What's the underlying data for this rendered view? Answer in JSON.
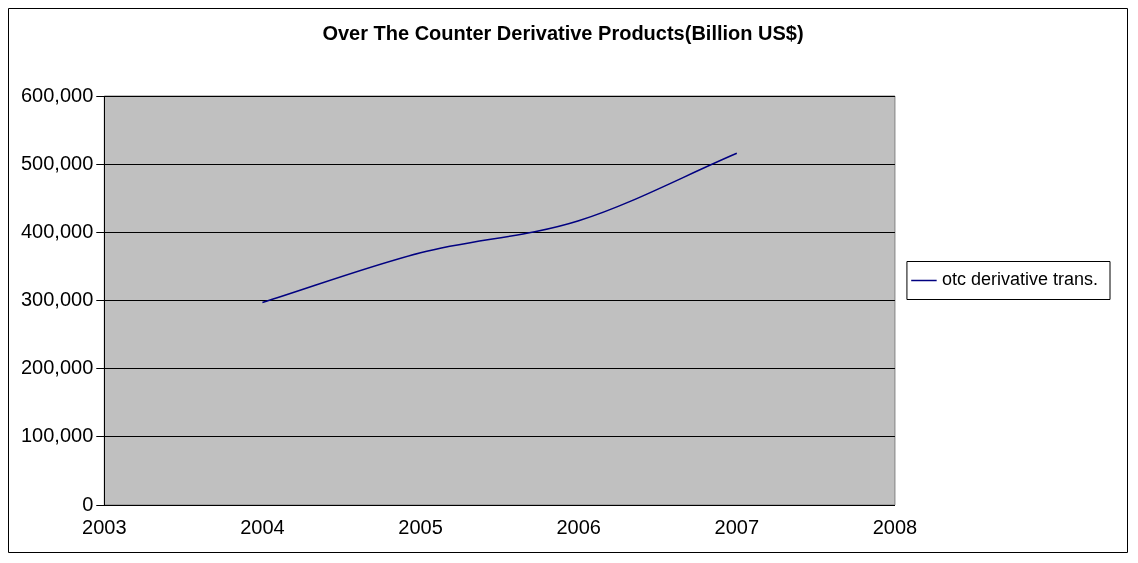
{
  "chart_data": {
    "type": "line",
    "title": "Over The Counter Derivative Products(Billion US$)",
    "x": [
      2004,
      2005,
      2006,
      2007
    ],
    "series": [
      {
        "name": "otc derivative trans.",
        "color": "#000080",
        "values": [
          297000,
          370000,
          417000,
          516000
        ]
      }
    ],
    "xlim": [
      2003,
      2008
    ],
    "xticks": [
      2003,
      2004,
      2005,
      2006,
      2007,
      2008
    ],
    "ylim": [
      0,
      600000
    ],
    "yticks": [
      0,
      {
        "value": 100000,
        "label": "100,000"
      },
      {
        "value": 200000,
        "label": "200,000"
      },
      {
        "value": 300000,
        "label": "300,000"
      },
      {
        "value": 400000,
        "label": "400,000"
      },
      {
        "value": 500000,
        "label": "500,000"
      },
      {
        "value": 600000,
        "label": "600,000"
      }
    ],
    "grid": "y",
    "legend": "right",
    "marker": "none",
    "line_style": "solid"
  }
}
